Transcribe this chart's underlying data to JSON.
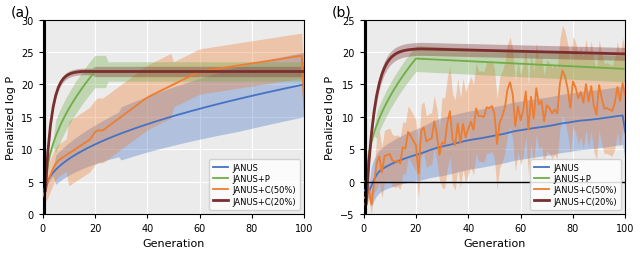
{
  "figsize": [
    6.4,
    2.55
  ],
  "dpi": 100,
  "panel_a": {
    "title": "(a)",
    "xlabel": "Generation",
    "ylabel": "Penalized log P",
    "xlim": [
      0,
      100
    ],
    "ylim": [
      0,
      30
    ],
    "yticks": [
      0,
      5,
      10,
      15,
      20,
      25,
      30
    ],
    "xticks": [
      0,
      20,
      40,
      60,
      80,
      100
    ],
    "vline_x": 1
  },
  "panel_b": {
    "title": "(b)",
    "xlabel": "Generation",
    "ylabel": "Penalized log P",
    "xlim": [
      0,
      100
    ],
    "ylim": [
      -5,
      25
    ],
    "yticks": [
      -5,
      0,
      5,
      10,
      15,
      20,
      25
    ],
    "xticks": [
      0,
      20,
      40,
      60,
      80,
      100
    ],
    "vline_x": 1,
    "hline_y": 0
  },
  "colors": {
    "janus": "#4472c4",
    "janus_p": "#70ad47",
    "janus_c50": "#ed7d31",
    "janus_c20": "#7b2e2e"
  },
  "legend_labels": [
    "JANUS",
    "JANUS+P",
    "JANUS+C(50%)",
    "JANUS+C(20%)"
  ],
  "alpha_band": 0.35,
  "seed": 42
}
